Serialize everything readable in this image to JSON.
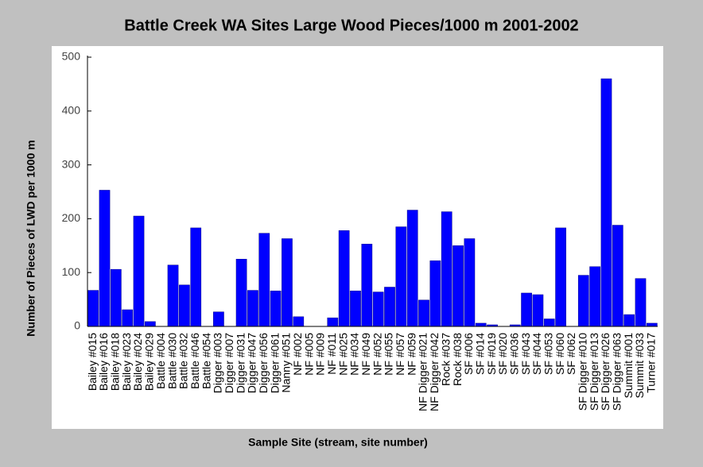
{
  "chart_data": {
    "type": "bar",
    "title": "Battle Creek WA Sites Large Wood Pieces/1000 m 2001-2002",
    "x_label": "Sample Site (stream, site number)",
    "y_label": "Number of Pieces of LWD per 1000 m",
    "categories": [
      "Bailey #015",
      "Bailey #016",
      "Bailey #018",
      "Bailey #023",
      "Bailey #024",
      "Bailey #029",
      "Battle #004",
      "Battle #030",
      "Battle #032",
      "Battle #046",
      "Battle #054",
      "Digger #003",
      "Digger #007",
      "Digger #031",
      "Digger #047",
      "Digger #056",
      "Digger #061",
      "Nanny #051",
      "NF #002",
      "NF #005",
      "NF #009",
      "NF #011",
      "NF #025",
      "NF #034",
      "NF #049",
      "NF #052",
      "NF #055",
      "NF #057",
      "NF #059",
      "NF Digger #021",
      "NF Digger #042",
      "Rock #037",
      "Rock #038",
      "SF #006",
      "SF #014",
      "SF #019",
      "SF #020",
      "SF #036",
      "SF #043",
      "SF #044",
      "SF #053",
      "SF #060",
      "SF #062",
      "SF Digger #010",
      "SF Digger #013",
      "SF Digger #026",
      "SF Digger #063",
      "Summit #001",
      "Summit #033",
      "Turner #017"
    ],
    "values": [
      67,
      253,
      106,
      31,
      205,
      9,
      0,
      114,
      77,
      183,
      0,
      27,
      0,
      125,
      67,
      173,
      66,
      163,
      18,
      0,
      0,
      16,
      178,
      66,
      153,
      64,
      73,
      185,
      216,
      49,
      122,
      213,
      150,
      163,
      6,
      3,
      0,
      3,
      62,
      59,
      14,
      183,
      0,
      95,
      111,
      460,
      188,
      22,
      89,
      6
    ],
    "color": "#0000ff",
    "ylim": [
      0,
      500
    ],
    "yticks": [
      0,
      100,
      200,
      300,
      400,
      500
    ]
  }
}
